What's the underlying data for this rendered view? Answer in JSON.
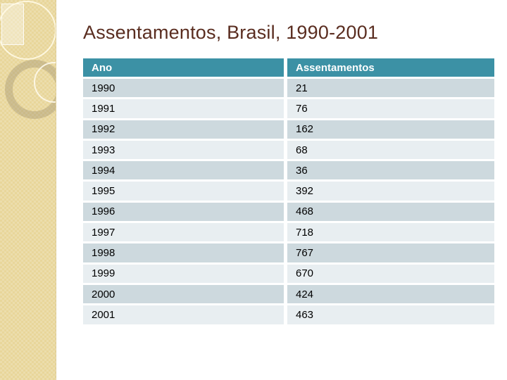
{
  "slide": {
    "title": "Assentamentos, Brasil, 1990-2001"
  },
  "table": {
    "headers": [
      "Ano",
      "Assentamentos"
    ],
    "rows": [
      [
        "1990",
        "21"
      ],
      [
        "1991",
        "76"
      ],
      [
        "1992",
        "162"
      ],
      [
        "1993",
        "68"
      ],
      [
        "1994",
        "36"
      ],
      [
        "1995",
        "392"
      ],
      [
        "1996",
        "468"
      ],
      [
        "1997",
        "718"
      ],
      [
        "1998",
        "767"
      ],
      [
        "1999",
        "670"
      ],
      [
        "2000",
        "424"
      ],
      [
        "2001",
        "463"
      ]
    ]
  },
  "chart_data": {
    "type": "table",
    "title": "Assentamentos, Brasil, 1990-2001",
    "categories": [
      "1990",
      "1991",
      "1992",
      "1993",
      "1994",
      "1995",
      "1996",
      "1997",
      "1998",
      "1999",
      "2000",
      "2001"
    ],
    "values": [
      21,
      76,
      162,
      68,
      36,
      392,
      468,
      718,
      767,
      670,
      424,
      463
    ],
    "xlabel": "Ano",
    "ylabel": "Assentamentos"
  },
  "colors": {
    "header_bg": "#3c91a5",
    "row_odd": "#cdd9de",
    "row_even": "#e8eef1",
    "sidebar": "#e8d69a",
    "title": "#5a2d20"
  }
}
